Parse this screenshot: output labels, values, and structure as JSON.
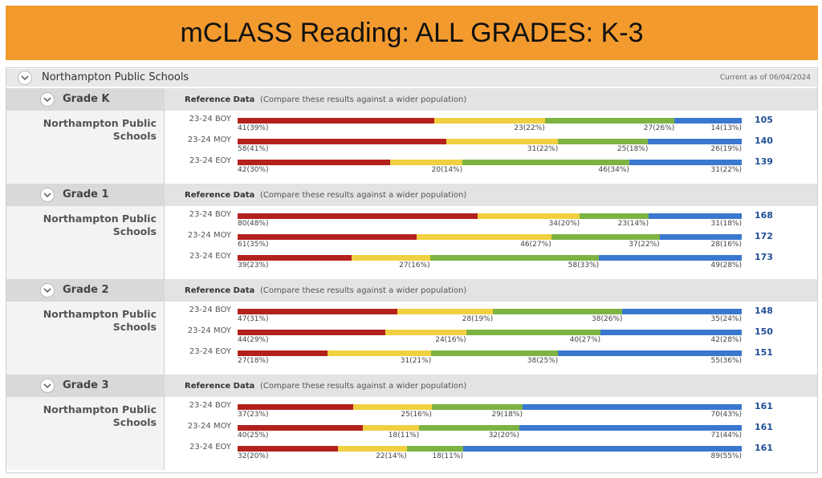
{
  "header": {
    "title": "mCLASS Reading: ALL GRADES: K-3"
  },
  "panel": {
    "name": "Northampton Public Schools",
    "as_of": "Current as of 06/04/2024",
    "reference_label": "Reference Data",
    "reference_note": "(Compare these results against a wider population)",
    "segment_colors": [
      "#b3211d",
      "#f0d040",
      "#7cb342",
      "#3a78cf"
    ],
    "grades": [
      {
        "name": "Grade K",
        "school": "Northampton Public Schools",
        "rows": [
          {
            "period": "23-24 BOY",
            "values": [
              41,
              23,
              27,
              14
            ],
            "value_labels": [
              "41(39%)",
              "23(22%)",
              "27(26%)",
              "14(13%)"
            ],
            "total": 105
          },
          {
            "period": "23-24 MOY",
            "values": [
              58,
              31,
              25,
              26
            ],
            "value_labels": [
              "58(41%)",
              "31(22%)",
              "25(18%)",
              "26(19%)"
            ],
            "total": 140
          },
          {
            "period": "23-24 EOY",
            "values": [
              42,
              20,
              46,
              31
            ],
            "value_labels": [
              "42(30%)",
              "20(14%)",
              "46(34%)",
              "31(22%)"
            ],
            "total": 139
          }
        ]
      },
      {
        "name": "Grade 1",
        "school": "Northampton Public Schools",
        "rows": [
          {
            "period": "23-24 BOY",
            "values": [
              80,
              34,
              23,
              31
            ],
            "value_labels": [
              "80(48%)",
              "34(20%)",
              "23(14%)",
              "31(18%)"
            ],
            "total": 168
          },
          {
            "period": "23-24 MOY",
            "values": [
              61,
              46,
              37,
              28
            ],
            "value_labels": [
              "61(35%)",
              "46(27%)",
              "37(22%)",
              "28(16%)"
            ],
            "total": 172
          },
          {
            "period": "23-24 EOY",
            "values": [
              39,
              27,
              58,
              49
            ],
            "value_labels": [
              "39(23%)",
              "27(16%)",
              "58(33%)",
              "49(28%)"
            ],
            "total": 173
          }
        ]
      },
      {
        "name": "Grade 2",
        "school": "Northampton Public Schools",
        "rows": [
          {
            "period": "23-24 BOY",
            "values": [
              47,
              28,
              38,
              35
            ],
            "value_labels": [
              "47(31%)",
              "28(19%)",
              "38(26%)",
              "35(24%)"
            ],
            "total": 148
          },
          {
            "period": "23-24 MOY",
            "values": [
              44,
              24,
              40,
              42
            ],
            "value_labels": [
              "44(29%)",
              "24(16%)",
              "40(27%)",
              "42(28%)"
            ],
            "total": 150
          },
          {
            "period": "23-24 EOY",
            "values": [
              27,
              31,
              38,
              55
            ],
            "value_labels": [
              "27(18%)",
              "31(21%)",
              "38(25%)",
              "55(36%)"
            ],
            "total": 151
          }
        ]
      },
      {
        "name": "Grade 3",
        "school": "Northampton Public Schools",
        "rows": [
          {
            "period": "23-24 BOY",
            "values": [
              37,
              25,
              29,
              70
            ],
            "value_labels": [
              "37(23%)",
              "25(16%)",
              "29(18%)",
              "70(43%)"
            ],
            "total": 161
          },
          {
            "period": "23-24 MOY",
            "values": [
              40,
              18,
              32,
              71
            ],
            "value_labels": [
              "40(25%)",
              "18(11%)",
              "32(20%)",
              "71(44%)"
            ],
            "total": 161
          },
          {
            "period": "23-24 EOY",
            "values": [
              32,
              22,
              18,
              89
            ],
            "value_labels": [
              "32(20%)",
              "22(14%)",
              "18(11%)",
              "89(55%)"
            ],
            "total": 161
          }
        ]
      }
    ]
  }
}
